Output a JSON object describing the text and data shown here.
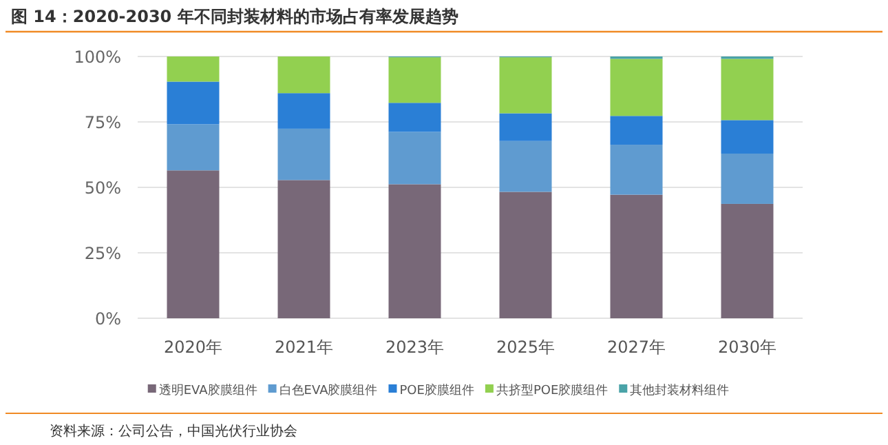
{
  "chart_data": {
    "type": "bar",
    "title": "图 14：2020-2030 年不同封装材料的市场占有率发展趋势",
    "stacked": true,
    "categories": [
      "2020年",
      "2021年",
      "2023年",
      "2025年",
      "2027年",
      "2030年"
    ],
    "series": [
      {
        "name": "透明EVA胶膜组件",
        "color": "#786878",
        "values": [
          56.5,
          52.8,
          51.2,
          48.3,
          47.2,
          43.7
        ]
      },
      {
        "name": "白色EVA胶膜组件",
        "color": "#5f9bd0",
        "values": [
          17.6,
          19.6,
          20.0,
          19.4,
          19.1,
          19.2
        ]
      },
      {
        "name": "POE胶膜组件",
        "color": "#2a7fd6",
        "values": [
          16.3,
          13.6,
          11.1,
          10.6,
          11.0,
          12.8
        ]
      },
      {
        "name": "共挤型POE胶膜组件",
        "color": "#92d050",
        "values": [
          9.6,
          14.0,
          17.4,
          21.4,
          21.8,
          23.4
        ]
      },
      {
        "name": "其他封装材料组件",
        "color": "#4aa3a8",
        "values": [
          0,
          0,
          0.3,
          0.3,
          0.9,
          0.9
        ]
      }
    ],
    "ylim": [
      0,
      100
    ],
    "yticks": [
      {
        "value": 0,
        "label": "0%"
      },
      {
        "value": 25,
        "label": "25%"
      },
      {
        "value": 50,
        "label": "50%"
      },
      {
        "value": 75,
        "label": "75%"
      },
      {
        "value": 100,
        "label": "100%"
      }
    ],
    "grid": "y",
    "legend": "bottom",
    "annotations": [
      "资料来源：公司公告，中国光伏行业协会"
    ]
  }
}
